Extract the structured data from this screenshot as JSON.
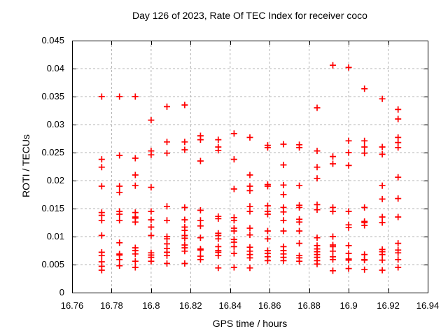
{
  "chart_data": {
    "type": "scatter",
    "title": "Day 126 of 2023, Rate Of TEC Index for receiver coco",
    "xlabel": "GPS time / hours",
    "ylabel": "ROTI / TECUs",
    "xlim": [
      16.76,
      16.94
    ],
    "ylim": [
      0,
      0.045
    ],
    "xticks": [
      16.76,
      16.78,
      16.8,
      16.82,
      16.84,
      16.86,
      16.88,
      16.9,
      16.92,
      16.94
    ],
    "xtick_labels": [
      "16.76",
      "16.78",
      "16.8",
      "16.82",
      "16.84",
      "16.86",
      "16.88",
      "16.9",
      "16.92",
      "16.94"
    ],
    "yticks": [
      0,
      0.005,
      0.01,
      0.015,
      0.02,
      0.025,
      0.03,
      0.035,
      0.04,
      0.045
    ],
    "ytick_labels": [
      "0",
      "0.005",
      "0.01",
      "0.015",
      "0.02",
      "0.025",
      "0.03",
      "0.035",
      "0.04",
      "0.045"
    ],
    "grid": true,
    "legend": "none",
    "marker": {
      "shape": "plus",
      "color": "#ff0000",
      "size": 9
    },
    "series": [
      {
        "name": "roti",
        "points": [
          [
            16.775,
            0.035
          ],
          [
            16.775,
            0.0238
          ],
          [
            16.775,
            0.0224
          ],
          [
            16.775,
            0.019
          ],
          [
            16.775,
            0.0143
          ],
          [
            16.775,
            0.0138
          ],
          [
            16.775,
            0.0129
          ],
          [
            16.775,
            0.0102
          ],
          [
            16.775,
            0.0072
          ],
          [
            16.775,
            0.0066
          ],
          [
            16.775,
            0.0055
          ],
          [
            16.775,
            0.0047
          ],
          [
            16.775,
            0.004
          ],
          [
            16.784,
            0.035
          ],
          [
            16.784,
            0.0245
          ],
          [
            16.784,
            0.019
          ],
          [
            16.784,
            0.0179
          ],
          [
            16.784,
            0.0145
          ],
          [
            16.784,
            0.014
          ],
          [
            16.784,
            0.0129
          ],
          [
            16.784,
            0.0089
          ],
          [
            16.784,
            0.0069
          ],
          [
            16.784,
            0.0067
          ],
          [
            16.784,
            0.0059
          ],
          [
            16.784,
            0.0048
          ],
          [
            16.792,
            0.035
          ],
          [
            16.792,
            0.024
          ],
          [
            16.792,
            0.021
          ],
          [
            16.792,
            0.0191
          ],
          [
            16.792,
            0.0143
          ],
          [
            16.792,
            0.0135
          ],
          [
            16.792,
            0.0133
          ],
          [
            16.792,
            0.0126
          ],
          [
            16.792,
            0.008
          ],
          [
            16.792,
            0.0075
          ],
          [
            16.792,
            0.0069
          ],
          [
            16.792,
            0.0056
          ],
          [
            16.792,
            0.0045
          ],
          [
            16.8,
            0.0308
          ],
          [
            16.8,
            0.0253
          ],
          [
            16.8,
            0.0246
          ],
          [
            16.8,
            0.0188
          ],
          [
            16.8,
            0.0145
          ],
          [
            16.8,
            0.013
          ],
          [
            16.8,
            0.0117
          ],
          [
            16.8,
            0.0102
          ],
          [
            16.8,
            0.0071
          ],
          [
            16.8,
            0.0067
          ],
          [
            16.8,
            0.0063
          ],
          [
            16.8,
            0.0056
          ],
          [
            16.808,
            0.0332
          ],
          [
            16.808,
            0.0269
          ],
          [
            16.808,
            0.0249
          ],
          [
            16.808,
            0.0154
          ],
          [
            16.808,
            0.0129
          ],
          [
            16.808,
            0.01
          ],
          [
            16.808,
            0.0096
          ],
          [
            16.808,
            0.0087
          ],
          [
            16.808,
            0.0079
          ],
          [
            16.808,
            0.0072
          ],
          [
            16.808,
            0.0066
          ],
          [
            16.808,
            0.0052
          ],
          [
            16.817,
            0.0335
          ],
          [
            16.817,
            0.0269
          ],
          [
            16.817,
            0.0255
          ],
          [
            16.817,
            0.0152
          ],
          [
            16.817,
            0.013
          ],
          [
            16.817,
            0.0117
          ],
          [
            16.817,
            0.0111
          ],
          [
            16.817,
            0.0102
          ],
          [
            16.817,
            0.0097
          ],
          [
            16.817,
            0.0085
          ],
          [
            16.817,
            0.008
          ],
          [
            16.817,
            0.0074
          ],
          [
            16.817,
            0.0052
          ],
          [
            16.825,
            0.028
          ],
          [
            16.825,
            0.0273
          ],
          [
            16.825,
            0.0235
          ],
          [
            16.825,
            0.0147
          ],
          [
            16.825,
            0.0129
          ],
          [
            16.825,
            0.0119
          ],
          [
            16.825,
            0.0098
          ],
          [
            16.825,
            0.0078
          ],
          [
            16.825,
            0.0076
          ],
          [
            16.825,
            0.0065
          ],
          [
            16.825,
            0.0059
          ],
          [
            16.834,
            0.0273
          ],
          [
            16.834,
            0.026
          ],
          [
            16.834,
            0.0254
          ],
          [
            16.834,
            0.0136
          ],
          [
            16.834,
            0.0132
          ],
          [
            16.834,
            0.0106
          ],
          [
            16.834,
            0.0102
          ],
          [
            16.834,
            0.0096
          ],
          [
            16.834,
            0.0082
          ],
          [
            16.834,
            0.0075
          ],
          [
            16.834,
            0.0072
          ],
          [
            16.834,
            0.0066
          ],
          [
            16.834,
            0.0044
          ],
          [
            16.842,
            0.0284
          ],
          [
            16.842,
            0.0238
          ],
          [
            16.842,
            0.0185
          ],
          [
            16.842,
            0.0134
          ],
          [
            16.842,
            0.0129
          ],
          [
            16.842,
            0.0115
          ],
          [
            16.842,
            0.011
          ],
          [
            16.842,
            0.0095
          ],
          [
            16.842,
            0.009
          ],
          [
            16.842,
            0.0082
          ],
          [
            16.842,
            0.007
          ],
          [
            16.842,
            0.0045
          ],
          [
            16.85,
            0.0277
          ],
          [
            16.85,
            0.021
          ],
          [
            16.85,
            0.019
          ],
          [
            16.85,
            0.0182
          ],
          [
            16.85,
            0.0154
          ],
          [
            16.85,
            0.0145
          ],
          [
            16.85,
            0.0115
          ],
          [
            16.85,
            0.0103
          ],
          [
            16.85,
            0.0081
          ],
          [
            16.85,
            0.0074
          ],
          [
            16.85,
            0.0068
          ],
          [
            16.85,
            0.0062
          ],
          [
            16.85,
            0.0044
          ],
          [
            16.859,
            0.0263
          ],
          [
            16.859,
            0.0259
          ],
          [
            16.859,
            0.0193
          ],
          [
            16.859,
            0.019
          ],
          [
            16.859,
            0.0155
          ],
          [
            16.859,
            0.0145
          ],
          [
            16.859,
            0.014
          ],
          [
            16.859,
            0.011
          ],
          [
            16.859,
            0.0096
          ],
          [
            16.859,
            0.0075
          ],
          [
            16.859,
            0.007
          ],
          [
            16.859,
            0.0064
          ],
          [
            16.859,
            0.0057
          ],
          [
            16.867,
            0.0265
          ],
          [
            16.867,
            0.0228
          ],
          [
            16.867,
            0.0192
          ],
          [
            16.867,
            0.0175
          ],
          [
            16.867,
            0.0152
          ],
          [
            16.867,
            0.0144
          ],
          [
            16.867,
            0.0129
          ],
          [
            16.867,
            0.011
          ],
          [
            16.867,
            0.0082
          ],
          [
            16.867,
            0.0075
          ],
          [
            16.867,
            0.0069
          ],
          [
            16.867,
            0.0063
          ],
          [
            16.867,
            0.0057
          ],
          [
            16.875,
            0.0264
          ],
          [
            16.875,
            0.0259
          ],
          [
            16.875,
            0.0191
          ],
          [
            16.875,
            0.0156
          ],
          [
            16.875,
            0.0152
          ],
          [
            16.875,
            0.0131
          ],
          [
            16.875,
            0.0126
          ],
          [
            16.875,
            0.011
          ],
          [
            16.875,
            0.0088
          ],
          [
            16.875,
            0.0066
          ],
          [
            16.875,
            0.0062
          ],
          [
            16.875,
            0.0056
          ],
          [
            16.884,
            0.033
          ],
          [
            16.884,
            0.0253
          ],
          [
            16.884,
            0.0224
          ],
          [
            16.884,
            0.0204
          ],
          [
            16.884,
            0.0157
          ],
          [
            16.884,
            0.0148
          ],
          [
            16.884,
            0.0098
          ],
          [
            16.884,
            0.0084
          ],
          [
            16.884,
            0.0078
          ],
          [
            16.884,
            0.0073
          ],
          [
            16.884,
            0.0068
          ],
          [
            16.884,
            0.0063
          ],
          [
            16.884,
            0.0057
          ],
          [
            16.884,
            0.0051
          ],
          [
            16.892,
            0.0406
          ],
          [
            16.892,
            0.0243
          ],
          [
            16.892,
            0.023
          ],
          [
            16.892,
            0.0152
          ],
          [
            16.892,
            0.0145
          ],
          [
            16.892,
            0.01
          ],
          [
            16.892,
            0.0085
          ],
          [
            16.892,
            0.0082
          ],
          [
            16.892,
            0.0074
          ],
          [
            16.892,
            0.0064
          ],
          [
            16.892,
            0.0059
          ],
          [
            16.892,
            0.0039
          ],
          [
            16.9,
            0.0402
          ],
          [
            16.9,
            0.0271
          ],
          [
            16.9,
            0.025
          ],
          [
            16.9,
            0.0227
          ],
          [
            16.9,
            0.0145
          ],
          [
            16.9,
            0.0121
          ],
          [
            16.9,
            0.0116
          ],
          [
            16.9,
            0.0084
          ],
          [
            16.9,
            0.007
          ],
          [
            16.9,
            0.006
          ],
          [
            16.9,
            0.0058
          ],
          [
            16.9,
            0.0043
          ],
          [
            16.908,
            0.0364
          ],
          [
            16.908,
            0.0271
          ],
          [
            16.908,
            0.026
          ],
          [
            16.908,
            0.0249
          ],
          [
            16.908,
            0.0152
          ],
          [
            16.908,
            0.0127
          ],
          [
            16.908,
            0.0125
          ],
          [
            16.908,
            0.012
          ],
          [
            16.908,
            0.0068
          ],
          [
            16.908,
            0.0059
          ],
          [
            16.908,
            0.0058
          ],
          [
            16.908,
            0.0041
          ],
          [
            16.917,
            0.0346
          ],
          [
            16.917,
            0.026
          ],
          [
            16.917,
            0.0247
          ],
          [
            16.917,
            0.0191
          ],
          [
            16.917,
            0.0167
          ],
          [
            16.917,
            0.0135
          ],
          [
            16.917,
            0.0125
          ],
          [
            16.917,
            0.0077
          ],
          [
            16.917,
            0.0073
          ],
          [
            16.917,
            0.0068
          ],
          [
            16.917,
            0.0058
          ],
          [
            16.917,
            0.004
          ],
          [
            16.925,
            0.0327
          ],
          [
            16.925,
            0.031
          ],
          [
            16.925,
            0.0277
          ],
          [
            16.925,
            0.0268
          ],
          [
            16.925,
            0.0259
          ],
          [
            16.925,
            0.0206
          ],
          [
            16.925,
            0.0168
          ],
          [
            16.925,
            0.0135
          ],
          [
            16.925,
            0.0088
          ],
          [
            16.925,
            0.0076
          ],
          [
            16.925,
            0.0071
          ],
          [
            16.925,
            0.0059
          ],
          [
            16.925,
            0.0045
          ]
        ]
      }
    ]
  },
  "colors": {
    "marker": "#ff0000",
    "grid": "#b4b4b4",
    "axis": "#000000",
    "background": "#ffffff",
    "text": "#000000"
  }
}
